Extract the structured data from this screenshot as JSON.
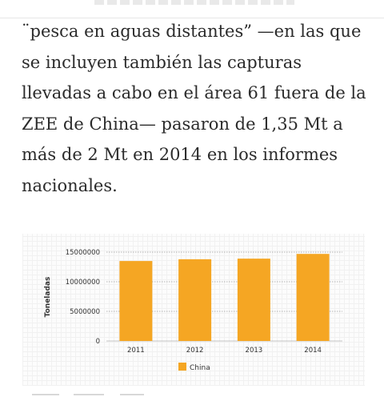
{
  "article": {
    "paragraph": "¨pesca en aguas distantes” —en las que se incluyen también las capturas llevadas a cabo en el área 61 fuera de la ZEE de China— pasaron de 1,35 Mt a más de 2 Mt en 2014 en los informes nacionales."
  },
  "chart_data": {
    "type": "bar",
    "categories": [
      "2011",
      "2012",
      "2013",
      "2014"
    ],
    "series": [
      {
        "name": "China",
        "values": [
          13500000,
          13800000,
          13900000,
          14700000
        ],
        "color": "#f5a623"
      }
    ],
    "ylabel": "Toneladas",
    "xlabel": "",
    "ylim": [
      0,
      15000000
    ],
    "yticks": [
      0,
      5000000,
      10000000,
      15000000
    ],
    "ytick_labels": [
      "0",
      "5000000",
      "10000000",
      "15000000"
    ],
    "grid": true,
    "grid_style": "dotted",
    "legend": "bottom-center"
  }
}
